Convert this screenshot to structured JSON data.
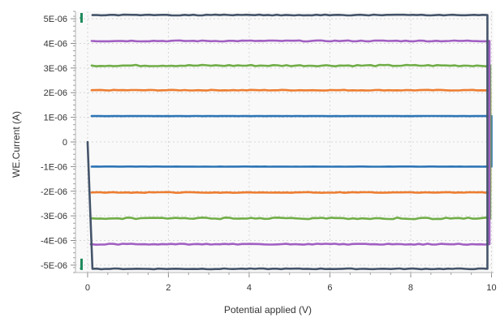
{
  "chart_data": {
    "type": "line",
    "title": "",
    "xlabel": "Potential applied (V)",
    "ylabel": "WE.Current (A)",
    "xlim": [
      -0.3,
      10.05
    ],
    "ylim": [
      -5.3e-06,
      5.3e-06
    ],
    "x_ticks": [
      0,
      2,
      4,
      6,
      8,
      10
    ],
    "x_tick_labels": [
      "0",
      "2",
      "4",
      "6",
      "8",
      "10"
    ],
    "y_ticks": [
      5e-06,
      4e-06,
      3e-06,
      2e-06,
      1e-06,
      0,
      -1e-06,
      -2e-06,
      -3e-06,
      -4e-06,
      -5e-06
    ],
    "y_tick_labels": [
      "5E-06",
      "4E-06",
      "3E-06",
      "2E-06",
      "1E-06",
      "0",
      "-1E-06",
      "-2E-06",
      "-3E-06",
      "-4E-06",
      "-5E-06"
    ],
    "grid": true,
    "legend": "none",
    "series": [
      {
        "color": "#2E75B6",
        "x": [
          0.1,
          10,
          10,
          0.1
        ],
        "y": [
          1.05e-06,
          1.05e-06,
          -1e-06,
          -1e-06
        ],
        "noise": 3e-09
      },
      {
        "color": "#ED7D31",
        "x": [
          0.1,
          9.97,
          9.97,
          0.1
        ],
        "y": [
          2.1e-06,
          2.1e-06,
          -2.05e-06,
          -2.05e-06
        ],
        "noise": 1.5e-08
      },
      {
        "color": "#70AD47",
        "x": [
          0.1,
          9.97,
          9.97,
          0.1
        ],
        "y": [
          3.1e-06,
          3.1e-06,
          -3.1e-06,
          -3.1e-06
        ],
        "noise": 3e-08
      },
      {
        "color": "#A15FC2",
        "x": [
          0.1,
          9.95,
          9.95,
          0.1,
          0.08
        ],
        "y": [
          4.1e-06,
          4.1e-06,
          -4.15e-06,
          -4.15e-06,
          -4.15e-06
        ],
        "noise": 2e-08
      },
      {
        "color": "#44546A",
        "x": [
          0.0,
          0.12,
          9.9,
          9.9,
          0.12
        ],
        "y": [
          0.0,
          -5.15e-06,
          -5.15e-06,
          5.15e-06,
          5.15e-06
        ],
        "noise": 1.5e-08
      }
    ]
  }
}
